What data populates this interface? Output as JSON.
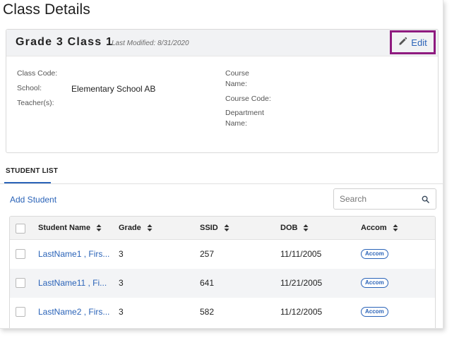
{
  "page": {
    "title": "Class Details"
  },
  "class_card": {
    "name": "Grade 3 Class 1",
    "modified": "Last Modified: 8/31/2020",
    "edit_label": "Edit",
    "fields": {
      "class_code_label": "Class Code:",
      "school_label": "School:",
      "school_value": "Elementary School AB",
      "teachers_label": "Teacher(s):",
      "course_name_label_1": "Course",
      "course_name_label_2": "Name:",
      "course_code_label": "Course Code:",
      "department_label_1": "Department",
      "department_label_2": "Name:"
    }
  },
  "tabs": [
    {
      "label": "STUDENT LIST",
      "active": true
    }
  ],
  "student_list": {
    "add_label": "Add Student",
    "search_placeholder": "Search",
    "columns": [
      "Student Name",
      "Grade",
      "SSID",
      "DOB",
      "Accom"
    ],
    "rows": [
      {
        "name": "LastName1 , Firs...",
        "grade": "3",
        "ssid": "257",
        "dob": "11/11/2005",
        "accom": "Accom"
      },
      {
        "name": "LastName11 , Fi...",
        "grade": "3",
        "ssid": "641",
        "dob": "11/21/2005",
        "accom": "Accom"
      },
      {
        "name": "LastName2 , Firs...",
        "grade": "3",
        "ssid": "582",
        "dob": "11/12/2005",
        "accom": "Accom"
      }
    ]
  },
  "colors": {
    "accent": "#2a63b8",
    "highlight_border": "#8e1a7f",
    "header_bg": "#f1f2f4"
  },
  "icons": {
    "edit": "pencil-icon",
    "search": "magnifier-icon",
    "sort": "sort-icon"
  }
}
